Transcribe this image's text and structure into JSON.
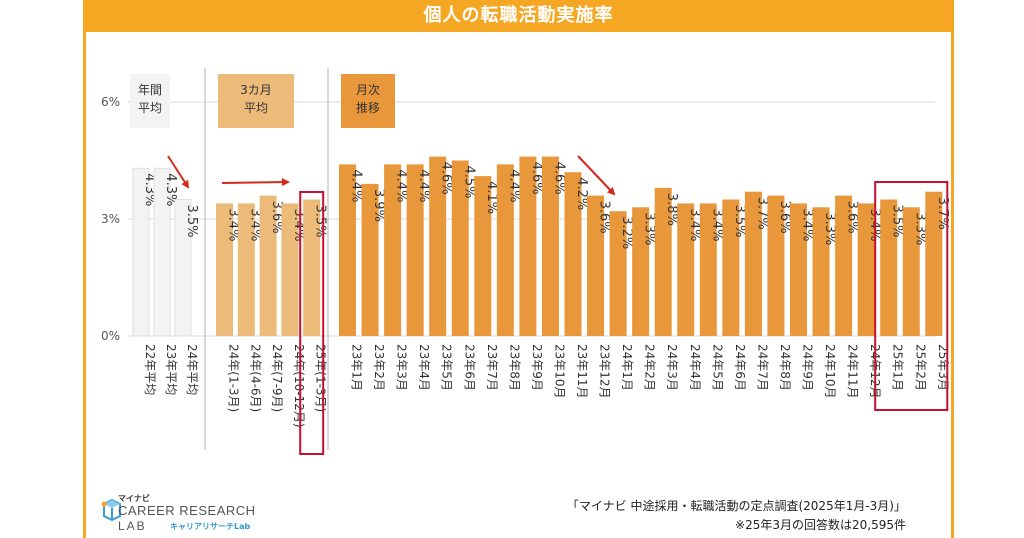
{
  "title": "個人の転職活動実施率",
  "colors": {
    "accent": "#f5a623",
    "annual_bar": "#f3f3f3",
    "quarter_bar": "#ecbb79",
    "monthly_bar": "#e8973a",
    "highlight": "#c8102e",
    "arrow": "#d42a1a"
  },
  "chart_data": {
    "type": "bar",
    "title": "個人の転職活動実施率",
    "ylim": [
      0,
      6
    ],
    "yticks": [
      "0%",
      "3%",
      "6%"
    ],
    "grid": true,
    "groups": [
      {
        "label": "年間 平均",
        "categories": [
          "22年平均",
          "23年平均",
          "24年平均"
        ],
        "values": [
          4.3,
          4.3,
          3.5
        ],
        "value_labels": [
          "4.3%",
          "4.3%",
          "3.5%"
        ]
      },
      {
        "label": "3カ月 平均",
        "categories": [
          "24年(1-3月)",
          "24年(4-6月)",
          "24年(7-9月)",
          "24年(10-12月)",
          "25年(1-3月)"
        ],
        "values": [
          3.4,
          3.4,
          3.6,
          3.4,
          3.5
        ],
        "value_labels": [
          "3.4%",
          "3.4%",
          "3.6%",
          "3.4%",
          "3.5%"
        ]
      },
      {
        "label": "月次 推移",
        "categories": [
          "23年1月",
          "23年2月",
          "23年3月",
          "23年4月",
          "23年5月",
          "23年6月",
          "23年7月",
          "23年8月",
          "23年9月",
          "23年10月",
          "23年11月",
          "23年12月",
          "24年1月",
          "24年2月",
          "24年3月",
          "24年4月",
          "24年5月",
          "24年6月",
          "24年7月",
          "24年8月",
          "24年9月",
          "24年10月",
          "24年11月",
          "24年12月",
          "25年1月",
          "25年2月",
          "25年3月"
        ],
        "values": [
          4.4,
          3.9,
          4.4,
          4.4,
          4.6,
          4.5,
          4.1,
          4.4,
          4.6,
          4.6,
          4.2,
          3.6,
          3.2,
          3.3,
          3.8,
          3.4,
          3.4,
          3.5,
          3.7,
          3.6,
          3.4,
          3.3,
          3.6,
          3.4,
          3.5,
          3.3,
          3.7
        ],
        "value_labels": [
          "4.4%",
          "3.9%",
          "4.4%",
          "4.4%",
          "4.6%",
          "4.5%",
          "4.1%",
          "4.4%",
          "4.6%",
          "4.6%",
          "4.2%",
          "3.6%",
          "3.2%",
          "3.3%",
          "3.8%",
          "3.4%",
          "3.4%",
          "3.5%",
          "3.7%",
          "3.6%",
          "3.4%",
          "3.3%",
          "3.6%",
          "3.4%",
          "3.5%",
          "3.3%",
          "3.7%"
        ]
      }
    ]
  },
  "logo": {
    "brand": "マイナビ",
    "name": "CAREER RESEARCH",
    "lab": "LAB",
    "sub": "キャリアリサーチLab"
  },
  "source": "「マイナビ 中途採用・転職活動の定点調査(2025年1月-3月)」",
  "note": "※25年3月の回答数は20,595件"
}
